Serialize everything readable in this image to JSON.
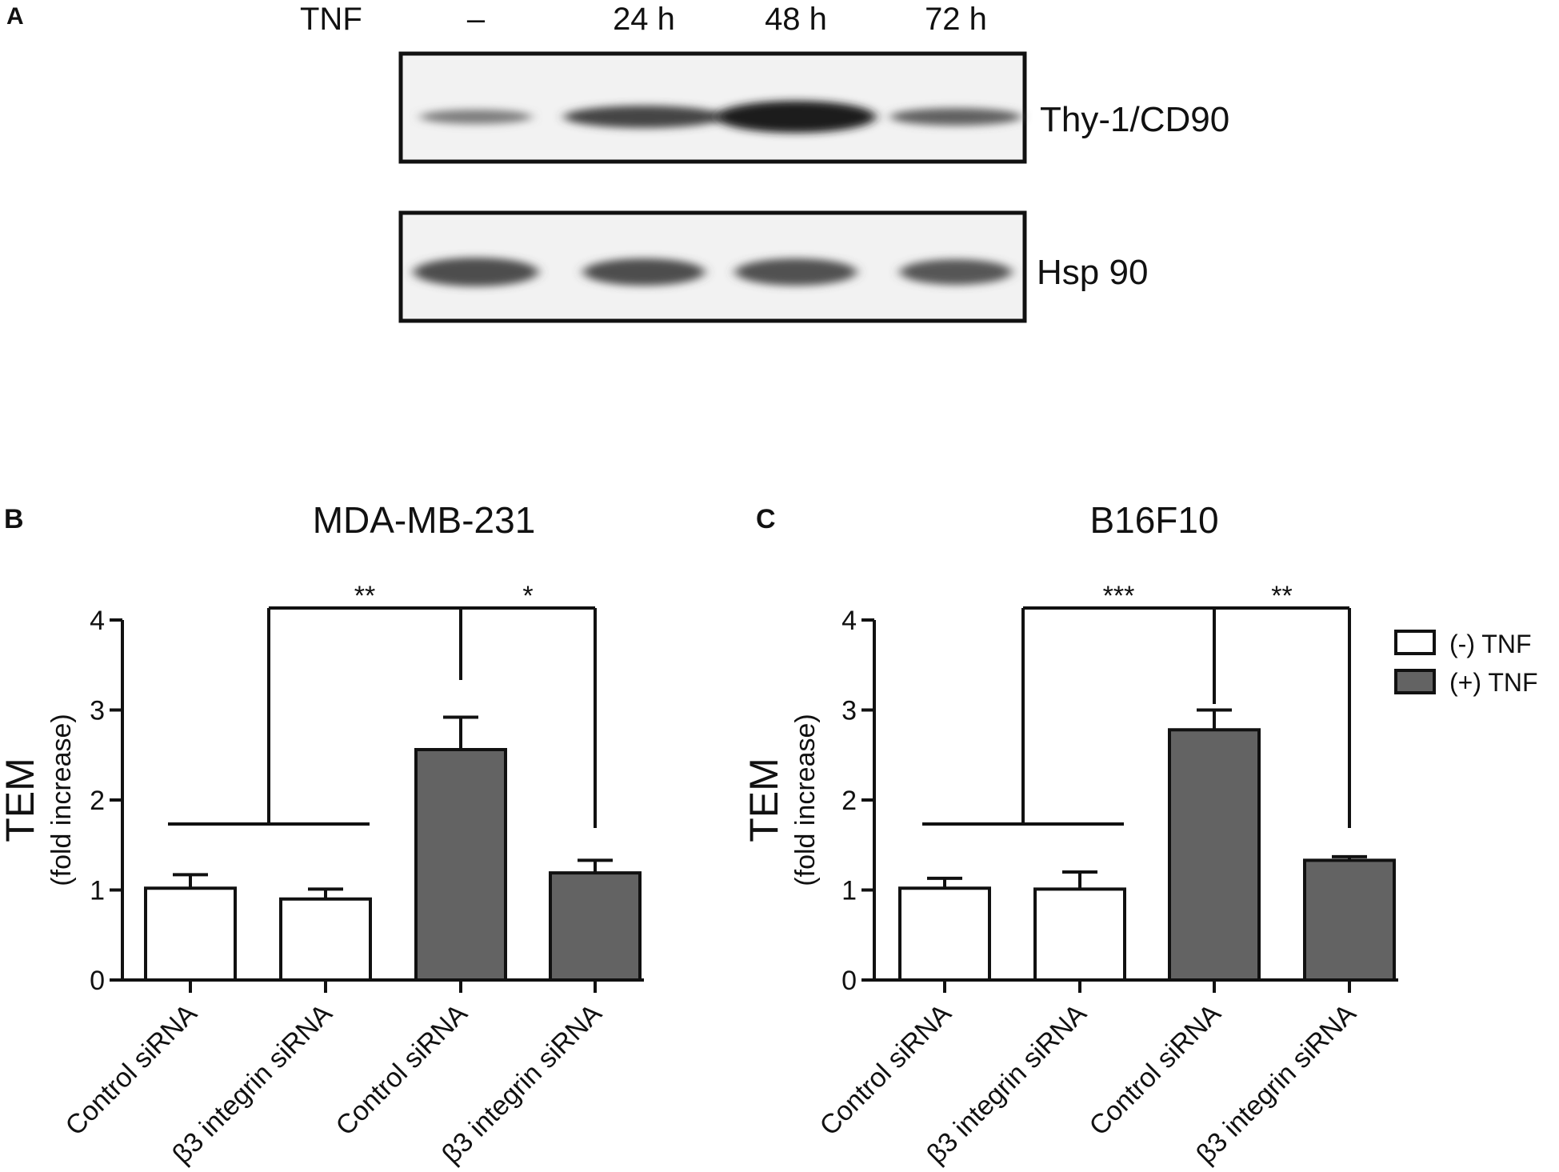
{
  "panels": {
    "a": {
      "letter": "A"
    },
    "b": {
      "letter": "B"
    },
    "c": {
      "letter": "C"
    }
  },
  "blot": {
    "treatment_label": "TNF",
    "lanes": [
      "–",
      "24 h",
      "48 h",
      "72 h"
    ],
    "bands": [
      {
        "label": "Thy-1/CD90",
        "intensity": [
          0.45,
          0.75,
          0.95,
          0.6
        ]
      },
      {
        "label": "Hsp 90",
        "intensity": [
          0.7,
          0.7,
          0.68,
          0.65
        ]
      }
    ]
  },
  "legend": {
    "items": [
      {
        "label": "(-) TNF",
        "color": "#ffffff"
      },
      {
        "label": "(+) TNF",
        "color": "#636363"
      }
    ]
  },
  "chart_data": [
    {
      "type": "bar",
      "title": "MDA-MB-231",
      "ylabel": "TEM",
      "ylabel_sub": "(fold increase)",
      "ylim": [
        0,
        4
      ],
      "yticks": [
        0,
        1,
        2,
        3,
        4
      ],
      "categories": [
        "Control siRNA",
        "β3 integrin siRNA",
        "Control siRNA",
        "β3 integrin siRNA"
      ],
      "values": [
        1.02,
        0.9,
        2.56,
        1.19
      ],
      "errors": [
        0.15,
        0.11,
        0.36,
        0.14
      ],
      "groups": [
        "(-) TNF",
        "(-) TNF",
        "(+) TNF",
        "(+) TNF"
      ],
      "significance": [
        "**",
        "*"
      ]
    },
    {
      "type": "bar",
      "title": "B16F10",
      "ylabel": "TEM",
      "ylabel_sub": "(fold increase)",
      "ylim": [
        0,
        4
      ],
      "yticks": [
        0,
        1,
        2,
        3,
        4
      ],
      "categories": [
        "Control siRNA",
        "β3 integrin siRNA",
        "Control siRNA",
        "β3 integrin siRNA"
      ],
      "values": [
        1.02,
        1.01,
        2.78,
        1.33
      ],
      "errors": [
        0.11,
        0.19,
        0.22,
        0.04
      ],
      "groups": [
        "(-) TNF",
        "(-) TNF",
        "(+) TNF",
        "(+) TNF"
      ],
      "significance": [
        "***",
        "**"
      ]
    }
  ]
}
